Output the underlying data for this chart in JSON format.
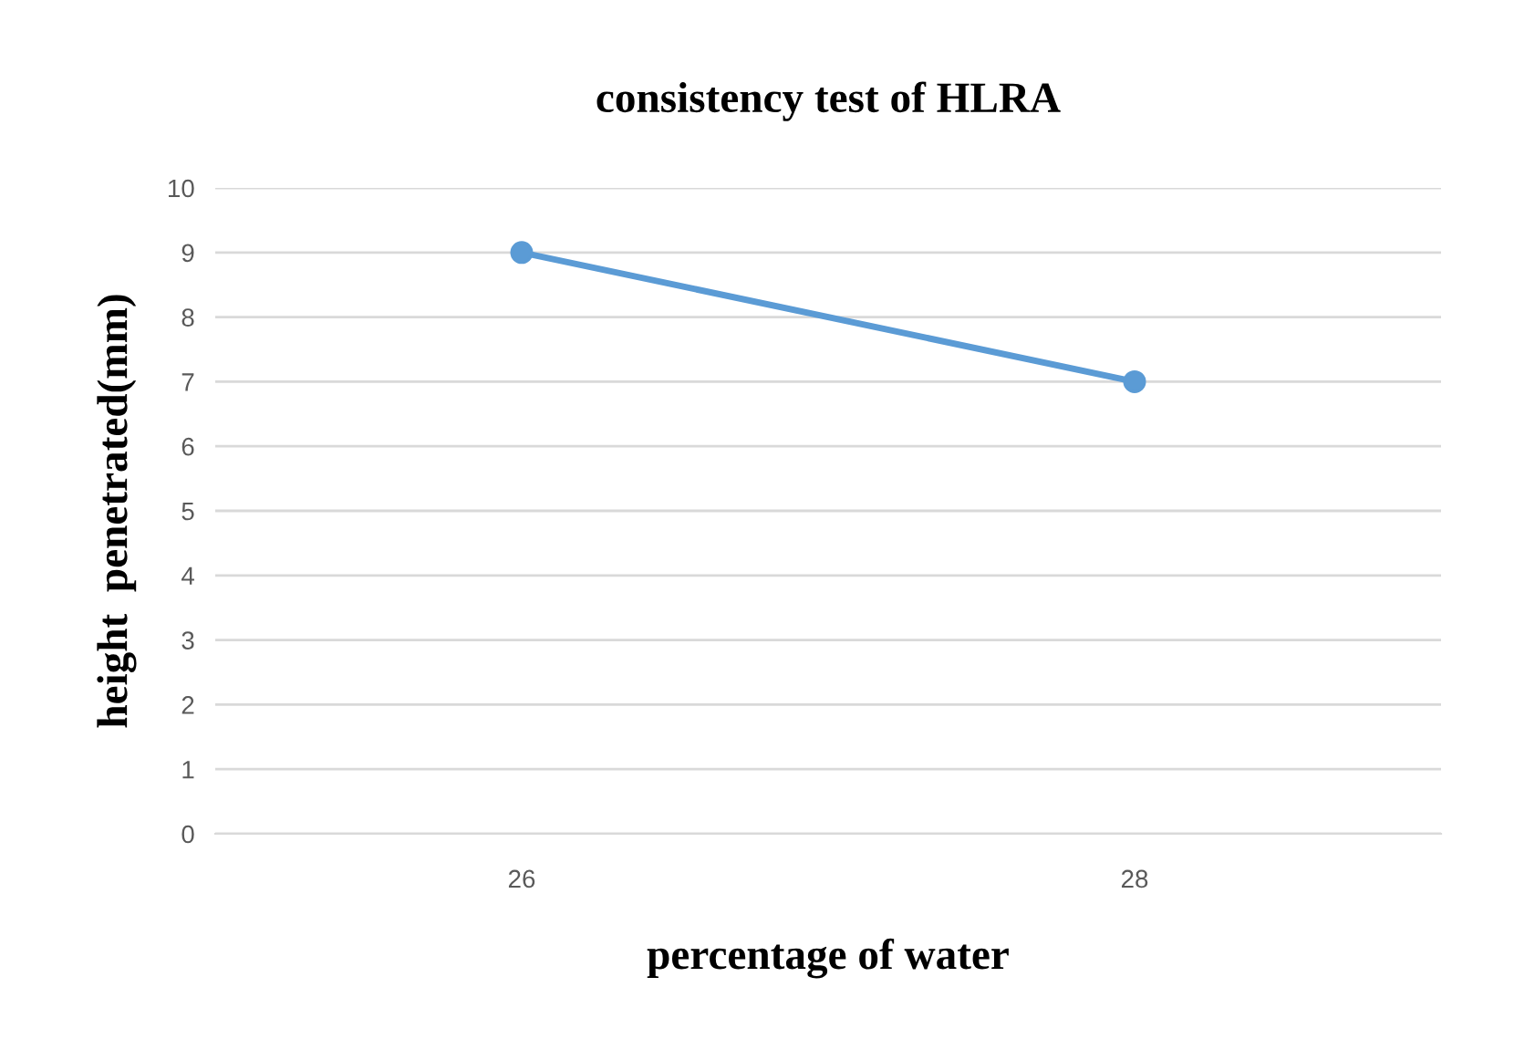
{
  "chart_data": {
    "type": "line",
    "title": "consistency test of HLRA",
    "xlabel": "percentage of water",
    "ylabel": "height  penetrated(mm)",
    "categories": [
      "26",
      "28"
    ],
    "series": [
      {
        "color": "#5b9bd5",
        "values": [
          9,
          7
        ]
      }
    ],
    "ylim": [
      0,
      10
    ],
    "yticks": [
      0,
      1,
      2,
      3,
      4,
      5,
      6,
      7,
      8,
      9,
      10
    ],
    "grid": "y",
    "marker": "circle",
    "line_style": "solid",
    "legend": false
  }
}
